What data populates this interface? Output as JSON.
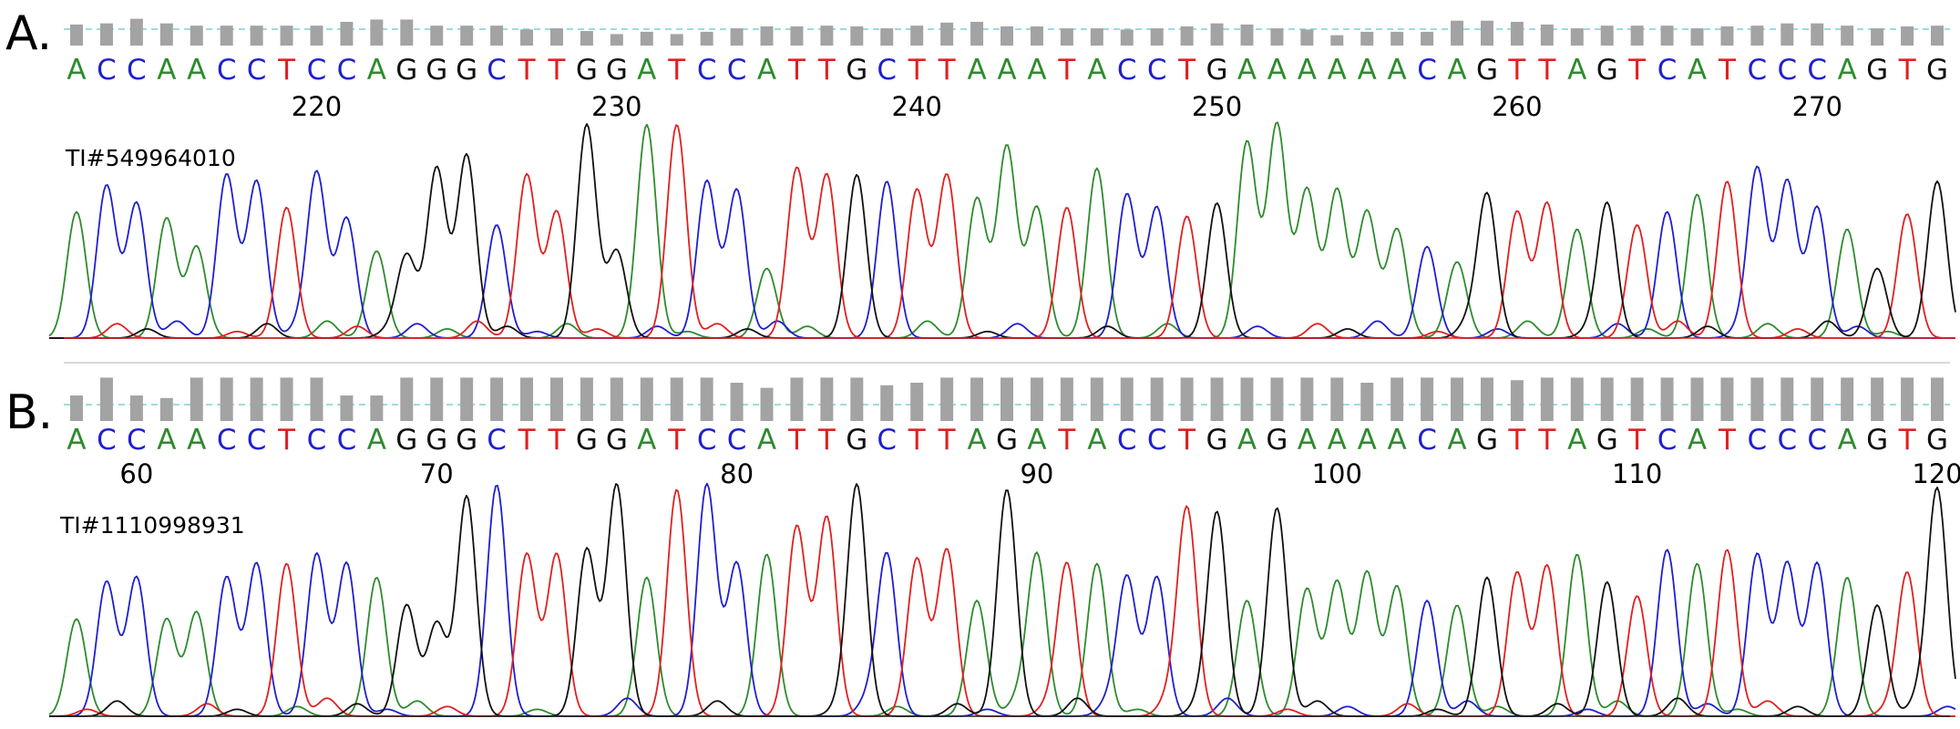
{
  "colors": {
    "A": "#2e8b2e",
    "C": "#1f1fcf",
    "G": "#111111",
    "T": "#e02020",
    "quality_bar": "#a3a3a3",
    "threshold_line": "#7fd0d6",
    "divider": "#d8d8d8"
  },
  "chart_data": [
    {
      "type": "chromatogram",
      "panel_label": "A.",
      "trace_id": "TI#549964010",
      "sequence": "ACCAACCTCCAGGGCTTGGATCCATTGCTTAAATACCTGAAAAAACAGTTAGTCATCCCAGTG",
      "first_position": 212,
      "position_labels": [
        220,
        230,
        240,
        250,
        260,
        270
      ],
      "quality": [
        0.55,
        0.58,
        0.7,
        0.58,
        0.52,
        0.52,
        0.52,
        0.52,
        0.52,
        0.62,
        0.68,
        0.68,
        0.52,
        0.52,
        0.52,
        0.42,
        0.45,
        0.38,
        0.3,
        0.36,
        0.3,
        0.36,
        0.45,
        0.5,
        0.5,
        0.52,
        0.5,
        0.45,
        0.52,
        0.6,
        0.62,
        0.5,
        0.5,
        0.45,
        0.45,
        0.42,
        0.45,
        0.5,
        0.58,
        0.55,
        0.45,
        0.42,
        0.27,
        0.36,
        0.36,
        0.36,
        0.65,
        0.65,
        0.62,
        0.55,
        0.45,
        0.52,
        0.52,
        0.52,
        0.45,
        0.5,
        0.52,
        0.58,
        0.58,
        0.52,
        0.45,
        0.5,
        0.52
      ],
      "peak_heights": [
        0.58,
        0.7,
        0.62,
        0.55,
        0.42,
        0.75,
        0.72,
        0.6,
        0.76,
        0.55,
        0.4,
        0.38,
        0.78,
        0.84,
        0.52,
        0.75,
        0.58,
        0.98,
        0.4,
        0.98,
        0.98,
        0.72,
        0.68,
        0.32,
        0.78,
        0.75,
        0.75,
        0.72,
        0.68,
        0.75,
        0.64,
        0.88,
        0.6,
        0.6,
        0.78,
        0.66,
        0.6,
        0.56,
        0.62,
        0.9,
        0.98,
        0.68,
        0.68,
        0.58,
        0.5,
        0.42,
        0.35,
        0.66,
        0.58,
        0.62,
        0.5,
        0.62,
        0.52,
        0.58,
        0.66,
        0.72,
        0.78,
        0.72,
        0.6,
        0.5,
        0.32,
        0.57,
        0.72
      ]
    },
    {
      "type": "chromatogram",
      "panel_label": "B.",
      "trace_id": "TI#1110998931",
      "sequence": "ACCAACCTCCAGGGCTTGGATCCATTGCTTAGATACCTGAGAAAACAGTTAGTCATCCCAGTG",
      "first_position": 58,
      "position_labels": [
        60,
        70,
        80,
        90,
        100,
        110,
        120
      ],
      "quality": [
        0.5,
        0.85,
        0.5,
        0.45,
        0.85,
        0.85,
        0.85,
        0.85,
        0.85,
        0.5,
        0.5,
        0.85,
        0.85,
        0.85,
        0.85,
        0.85,
        0.85,
        0.85,
        0.85,
        0.85,
        0.85,
        0.85,
        0.75,
        0.65,
        0.85,
        0.85,
        0.85,
        0.7,
        0.75,
        0.85,
        0.85,
        0.85,
        0.85,
        0.85,
        0.85,
        0.85,
        0.85,
        0.85,
        0.85,
        0.85,
        0.85,
        0.85,
        0.85,
        0.75,
        0.85,
        0.85,
        0.85,
        0.85,
        0.8,
        0.85,
        0.85,
        0.85,
        0.85,
        0.85,
        0.85,
        0.85,
        0.85,
        0.85,
        0.85,
        0.85,
        0.85,
        0.85,
        0.85
      ],
      "peak_heights": [
        0.42,
        0.58,
        0.6,
        0.42,
        0.45,
        0.6,
        0.66,
        0.66,
        0.7,
        0.66,
        0.6,
        0.48,
        0.4,
        0.95,
        1,
        0.7,
        0.7,
        0.72,
        1,
        0.6,
        0.98,
        1,
        0.66,
        0.7,
        0.82,
        0.86,
        1,
        0.7,
        0.68,
        0.72,
        0.5,
        0.98,
        0.7,
        0.66,
        0.66,
        0.6,
        0.6,
        0.9,
        0.88,
        0.5,
        0.9,
        0.55,
        0.58,
        0.62,
        0.56,
        0.5,
        0.48,
        0.6,
        0.62,
        0.65,
        0.7,
        0.58,
        0.52,
        0.72,
        0.66,
        0.72,
        0.7,
        0.66,
        0.66,
        0.6,
        0.48,
        0.62,
        0.98
      ]
    }
  ]
}
